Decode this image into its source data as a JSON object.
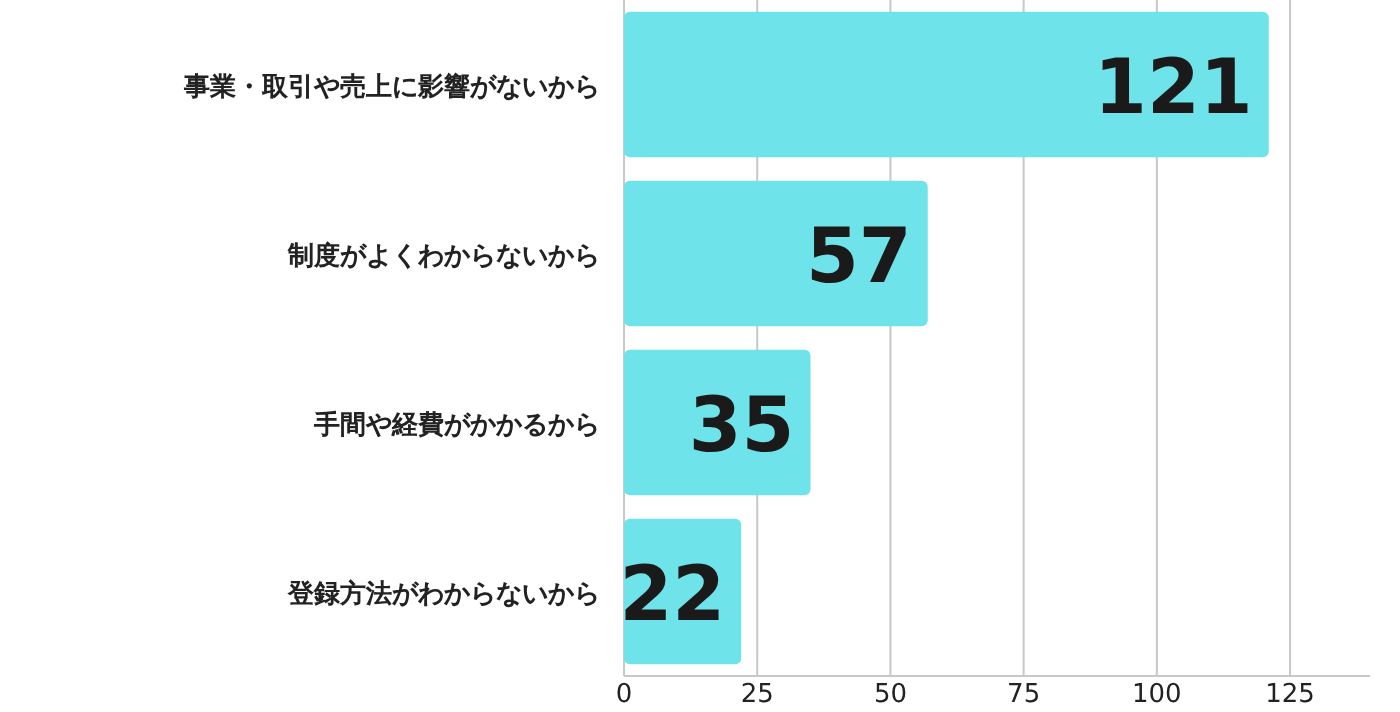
{
  "chart_data": {
    "type": "bar",
    "orientation": "horizontal",
    "categories": [
      "事業・取引や売上に影響がないから",
      "制度がよくわからないから",
      "手間や経費がかかるから",
      "登録方法がわからないから"
    ],
    "values": [
      121,
      57,
      35,
      22
    ],
    "color": "#6ee3ea",
    "xlim": [
      0,
      140
    ],
    "xticks": [
      0,
      25,
      50,
      75,
      100,
      125
    ],
    "grid": "x",
    "data_labels": true
  }
}
